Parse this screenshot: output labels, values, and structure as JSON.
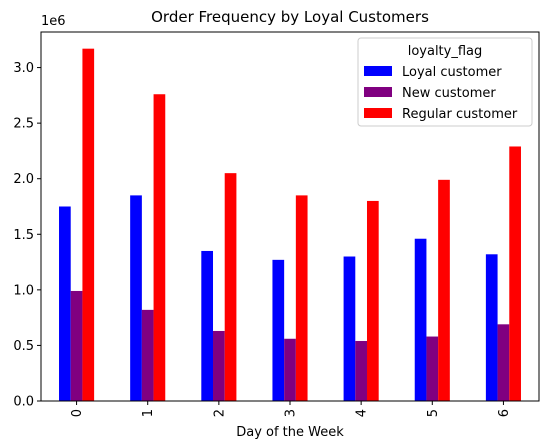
{
  "chart_data": {
    "type": "bar",
    "title": "Order Frequency by Loyal Customers",
    "xlabel": "Day of the Week",
    "ylabel": "",
    "y_offset_label": "1e6",
    "categories": [
      "0",
      "1",
      "2",
      "3",
      "4",
      "5",
      "6"
    ],
    "ylim": [
      0,
      3.32
    ],
    "yticks": [
      "0.0",
      "0.5",
      "1.0",
      "1.5",
      "2.0",
      "2.5",
      "3.0"
    ],
    "grid": false,
    "legend": {
      "title": "loyalty_flag",
      "placement": "top-right"
    },
    "series": [
      {
        "name": "Loyal customer",
        "color": "#0000ff",
        "values": [
          1.75,
          1.85,
          1.35,
          1.27,
          1.3,
          1.46,
          1.32
        ]
      },
      {
        "name": "New customer",
        "color": "#800080",
        "values": [
          0.99,
          0.82,
          0.63,
          0.56,
          0.54,
          0.58,
          0.69
        ]
      },
      {
        "name": "Regular customer",
        "color": "#ff0000",
        "values": [
          3.17,
          2.76,
          2.05,
          1.85,
          1.8,
          1.99,
          2.29
        ]
      }
    ]
  }
}
